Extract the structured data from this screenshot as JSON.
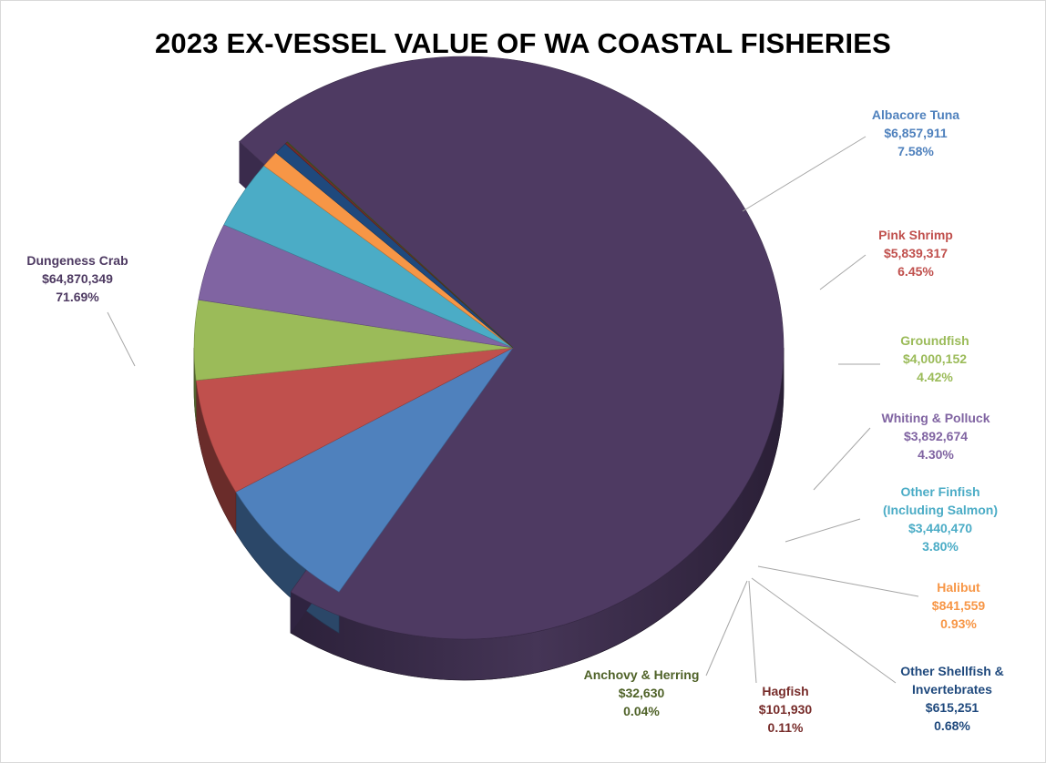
{
  "chart_data": {
    "type": "pie",
    "title": "2023 EX-VESSEL VALUE OF WA COASTAL FISHERIES",
    "slices": [
      {
        "name": "Dungeness Crab",
        "value": 64870349,
        "value_label": "$64,870,349",
        "percent_label": "71.69%",
        "color": "#4e3a62"
      },
      {
        "name": "Albacore Tuna",
        "value": 6857911,
        "value_label": "$6,857,911",
        "percent_label": "7.58%",
        "color": "#4f81bd"
      },
      {
        "name": "Pink Shrimp",
        "value": 5839317,
        "value_label": "$5,839,317",
        "percent_label": "6.45%",
        "color": "#c0504d"
      },
      {
        "name": "Groundfish",
        "value": 4000152,
        "value_label": "$4,000,152",
        "percent_label": "4.42%",
        "color": "#9bbb59"
      },
      {
        "name": "Whiting & Polluck",
        "value": 3892674,
        "value_label": "$3,892,674",
        "percent_label": "4.30%",
        "color": "#8064a2"
      },
      {
        "name": "Other Finfish (Including Salmon)",
        "name_lines": [
          "Other Finfish",
          "(Including Salmon)"
        ],
        "value": 3440470,
        "value_label": "$3,440,470",
        "percent_label": "3.80%",
        "color": "#4bacc6"
      },
      {
        "name": "Halibut",
        "value": 841559,
        "value_label": "$841,559",
        "percent_label": "0.93%",
        "color": "#f79646"
      },
      {
        "name": "Other Shellfish & Invertebrates",
        "name_lines": [
          "Other Shellfish &",
          "Invertebrates"
        ],
        "value": 615251,
        "value_label": "$615,251",
        "percent_label": "0.68%",
        "color": "#1f497d"
      },
      {
        "name": "Hagfish",
        "value": 101930,
        "value_label": "$101,930",
        "percent_label": "0.11%",
        "color": "#772c2a"
      },
      {
        "name": "Anchovy & Herring",
        "value": 32630,
        "value_label": "$32,630",
        "percent_label": "0.04%",
        "color": "#4f6228"
      }
    ]
  }
}
